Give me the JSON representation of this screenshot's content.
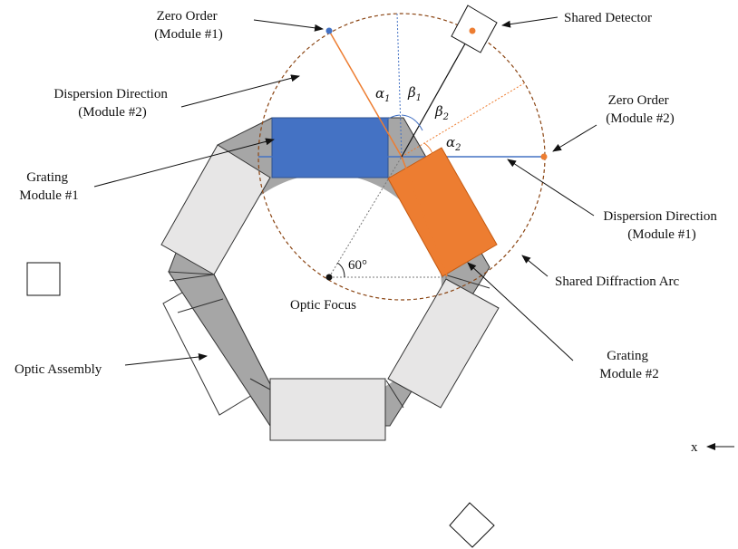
{
  "labels": {
    "zero_order_m1": [
      "Zero Order",
      "(Module #1)"
    ],
    "shared_detector": "Shared Detector",
    "dispersion_m2": [
      "Dispersion Direction",
      "(Module #2)"
    ],
    "zero_order_m2": [
      "Zero Order",
      "(Module #2)"
    ],
    "grating_m1": [
      "Grating",
      "Module #1"
    ],
    "dispersion_m1": [
      "Dispersion Direction",
      "(Module #1)"
    ],
    "shared_arc": "Shared Diffraction Arc",
    "optic_focus": "Optic Focus",
    "optic_assembly": "Optic Assembly",
    "grating_m2": [
      "Grating",
      "Module #2"
    ],
    "angle": "60°",
    "x_axis": "x"
  },
  "angles": {
    "alpha": "α",
    "beta": "β",
    "sub1": "1",
    "sub2": "2"
  },
  "colors": {
    "module1": "#4472C4",
    "module2": "#ED7D31",
    "ring_dark": "#A6A6A6",
    "panel_light": "#E7E6E6",
    "arc": "#8B4513"
  }
}
